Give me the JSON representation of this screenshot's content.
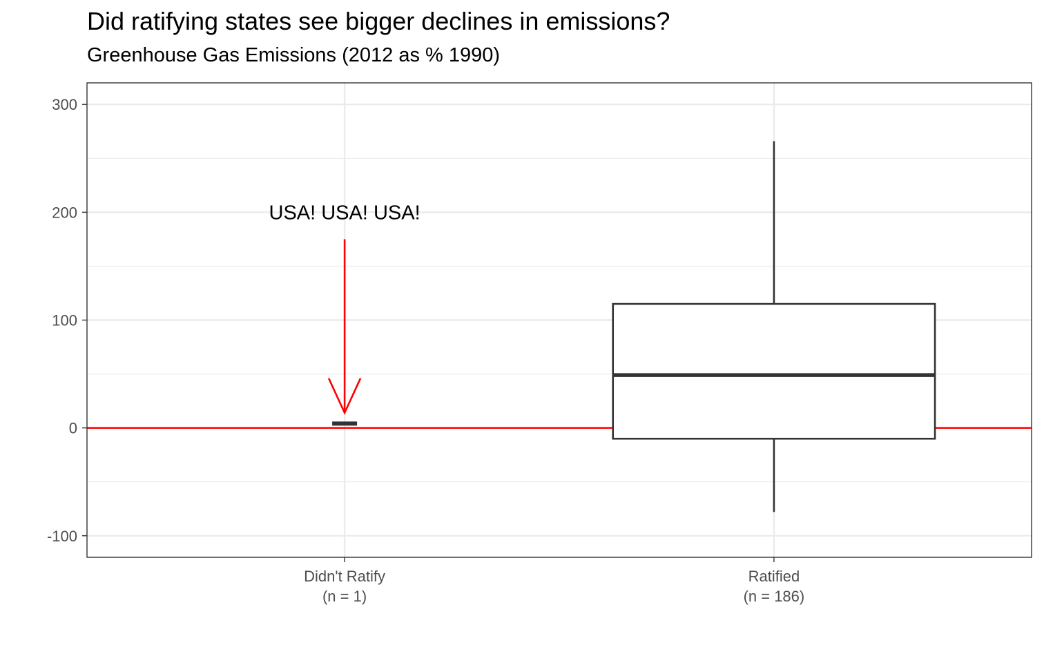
{
  "chart_data": {
    "type": "boxplot",
    "title": "Did ratifying states see bigger declines in emissions?",
    "subtitle": "Greenhouse Gas Emissions (2012 as % 1990)",
    "xlabel": "",
    "ylabel": "",
    "ylim": [
      -120,
      320
    ],
    "y_ticks": [
      -100,
      0,
      100,
      200,
      300
    ],
    "y_tick_labels": [
      "-100",
      "0",
      "100",
      "200",
      "300"
    ],
    "grid": true,
    "reference_line": {
      "y": 0,
      "color": "#ff0000"
    },
    "categories": [
      {
        "label_line1": "Didn't Ratify",
        "label_line2": "(n = 1)"
      },
      {
        "label_line1": "Ratified",
        "label_line2": "(n = 186)"
      }
    ],
    "boxes": [
      {
        "category": "Didn't Ratify",
        "min": 4,
        "q1": 4,
        "median": 4,
        "q3": 4,
        "max": 4
      },
      {
        "category": "Ratified",
        "min": -78,
        "q1": -10,
        "median": 49,
        "q3": 115,
        "max": 266
      }
    ],
    "annotation": {
      "text": "USA! USA! USA!",
      "text_y": 200,
      "arrow_from_y": 175,
      "arrow_to_y": 14,
      "color": "#ff0000"
    }
  }
}
